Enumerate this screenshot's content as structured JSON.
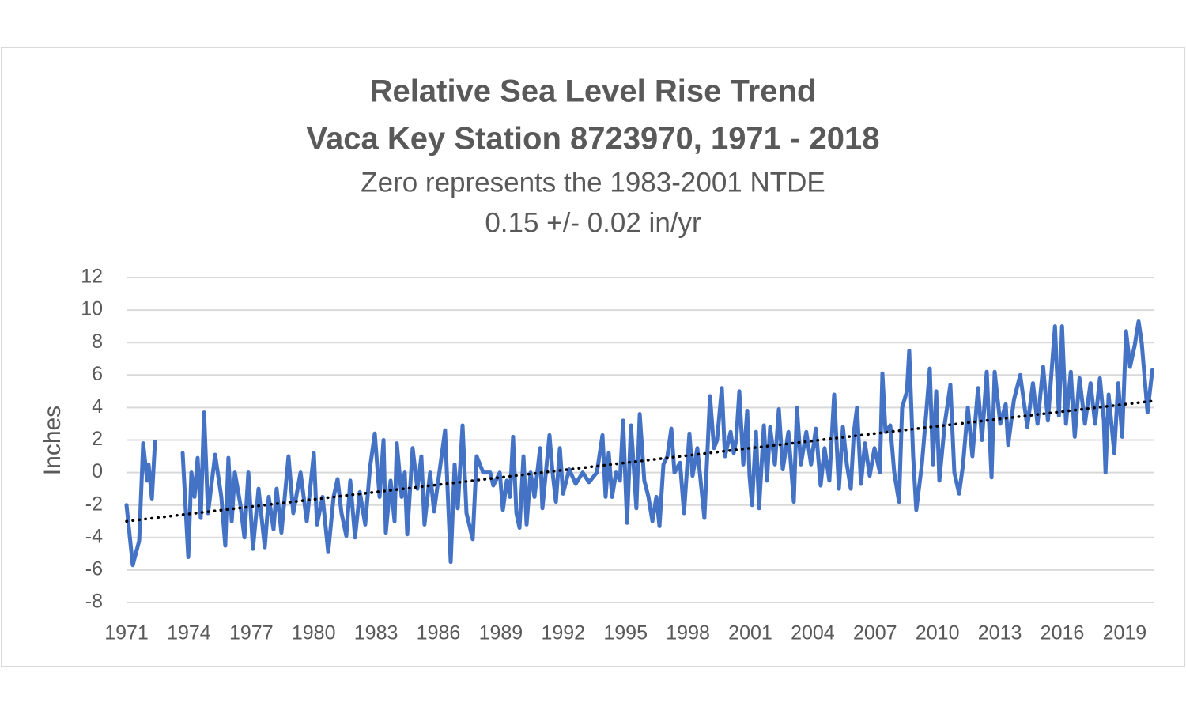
{
  "chart_data": {
    "type": "line",
    "title": [
      "Relative Sea Level Rise Trend",
      "Vaca Key Station 8723970, 1971 - 2018"
    ],
    "subtitle": [
      "Zero represents the 1983-2001 NTDE",
      "0.15 +/- 0.02 in/yr"
    ],
    "y_label": "Inches",
    "xlim": [
      1971,
      2020.43
    ],
    "xticks": [
      1971,
      1974,
      1977,
      1980,
      1983,
      1986,
      1989,
      1992,
      1995,
      1998,
      2001,
      2004,
      2007,
      2010,
      2013,
      2016,
      2019
    ],
    "ylim": [
      -8,
      12
    ],
    "yticks": [
      -8,
      -6,
      -4,
      -2,
      0,
      2,
      4,
      6,
      8,
      10,
      12
    ],
    "grid": true,
    "series": [
      {
        "color": "#4472c4",
        "x": [
          1971.0,
          1971.3,
          1971.61,
          1971.8,
          1971.99,
          1972.06,
          1972.22,
          1972.37,
          1973.0,
          1973.7,
          1973.97,
          1974.12,
          1974.27,
          1974.42,
          1974.57,
          1974.73,
          1974.92,
          1975.26,
          1975.56,
          1975.75,
          1975.9,
          1976.06,
          1976.21,
          1976.48,
          1976.67,
          1976.86,
          1977.08,
          1977.35,
          1977.65,
          1977.84,
          1978.07,
          1978.22,
          1978.45,
          1978.79,
          1979.02,
          1979.37,
          1979.67,
          1980.01,
          1980.16,
          1980.43,
          1980.7,
          1980.96,
          1981.15,
          1981.34,
          1981.57,
          1981.76,
          1981.99,
          1982.22,
          1982.48,
          1982.71,
          1982.94,
          1983.17,
          1983.36,
          1983.47,
          1983.7,
          1983.89,
          1984.0,
          1984.23,
          1984.38,
          1984.5,
          1984.76,
          1984.99,
          1985.18,
          1985.33,
          1985.6,
          1985.79,
          1986.32,
          1986.59,
          1986.78,
          1986.93,
          1987.16,
          1987.35,
          1987.65,
          1987.84,
          1988.15,
          1988.49,
          1988.64,
          1988.95,
          1989.1,
          1989.29,
          1989.44,
          1989.59,
          1989.75,
          1989.9,
          1990.09,
          1990.24,
          1990.43,
          1990.62,
          1990.89,
          1991.0,
          1991.34,
          1991.49,
          1991.65,
          1991.84,
          1991.99,
          1992.29,
          1992.6,
          1992.94,
          1993.24,
          1993.62,
          1993.89,
          1994.04,
          1994.19,
          1994.35,
          1994.54,
          1994.73,
          1994.88,
          1995.07,
          1995.26,
          1995.41,
          1995.52,
          1995.68,
          1995.9,
          1996.1,
          1996.29,
          1996.48,
          1996.63,
          1996.82,
          1997.01,
          1997.2,
          1997.35,
          1997.62,
          1997.81,
          1998.07,
          1998.22,
          1998.45,
          1998.79,
          1999.06,
          1999.25,
          1999.4,
          1999.63,
          1999.78,
          2000.05,
          2000.2,
          2000.32,
          2000.47,
          2000.66,
          2000.85,
          2000.96,
          2001.08,
          2001.27,
          2001.42,
          2001.65,
          2001.8,
          2001.95,
          2002.18,
          2002.37,
          2002.56,
          2002.83,
          2003.09,
          2003.24,
          2003.43,
          2003.69,
          2003.92,
          2004.15,
          2004.38,
          2004.57,
          2004.8,
          2005.03,
          2005.26,
          2005.45,
          2005.64,
          2005.83,
          2005.98,
          2006.13,
          2006.32,
          2006.51,
          2006.74,
          2006.97,
          2007.23,
          2007.35,
          2007.5,
          2007.73,
          2007.92,
          2008.15,
          2008.3,
          2008.53,
          2008.64,
          2008.83,
          2008.98,
          2009.25,
          2009.48,
          2009.63,
          2009.78,
          2009.94,
          2010.09,
          2010.35,
          2010.62,
          2010.81,
          2011.04,
          2011.23,
          2011.46,
          2011.68,
          2011.95,
          2012.14,
          2012.37,
          2012.6,
          2012.75,
          2013.02,
          2013.28,
          2013.4,
          2013.68,
          2013.98,
          2014.32,
          2014.59,
          2014.81,
          2015.08,
          2015.31,
          2015.65,
          2015.84,
          2015.99,
          2016.18,
          2016.41,
          2016.6,
          2016.83,
          2017.09,
          2017.36,
          2017.58,
          2017.81,
          2018.0,
          2018.08,
          2018.23,
          2018.5,
          2018.69,
          2018.88,
          2019.07,
          2019.26,
          2019.48,
          2019.67,
          2019.82,
          2020.1,
          2020.33
        ],
        "values": [
          -2,
          -5.7,
          -4.2,
          1.8,
          -0.5,
          0.5,
          -1.6,
          1.9,
          null,
          1.2,
          -5.2,
          0,
          -1.5,
          0.9,
          -2.8,
          3.7,
          -2.5,
          1.1,
          -1.5,
          -4.5,
          0.9,
          -3,
          0,
          -2,
          -4,
          0,
          -4.7,
          -1,
          -4.6,
          -1.5,
          -3.5,
          -1.0,
          -3.7,
          1.0,
          -2.5,
          0,
          -3,
          1.2,
          -3.2,
          -1.5,
          -4.9,
          -1.5,
          -0.4,
          -2.5,
          -3.9,
          -0.5,
          -4,
          -1.2,
          -3.2,
          0.3,
          2.4,
          -1.5,
          2.0,
          -3.7,
          -0.5,
          -3,
          1.8,
          -1.5,
          0,
          -3.8,
          1.5,
          -1,
          1.0,
          -3.2,
          0,
          -2.4,
          2.6,
          -5.5,
          0.5,
          -2.2,
          2.9,
          -2.5,
          -4.1,
          1,
          0,
          0,
          -0.8,
          0,
          -2.3,
          -0.5,
          -1.5,
          2.2,
          -2.5,
          -3.4,
          1,
          -3.2,
          0,
          -1.5,
          1.5,
          -2.2,
          2.3,
          0,
          -1.8,
          1.5,
          -1.3,
          0.2,
          -0.7,
          0,
          -0.6,
          0,
          2.3,
          -1.5,
          1.2,
          -1.5,
          0,
          -0.5,
          3.2,
          -3.1,
          2.9,
          0,
          -2.2,
          3.6,
          -0.5,
          -1.5,
          -3,
          -1.5,
          -3.3,
          0.5,
          1.0,
          2.7,
          0,
          0.6,
          -2.5,
          2.4,
          -0.2,
          1.5,
          -2.8,
          4.7,
          1.5,
          2.0,
          5.2,
          1,
          2.5,
          1.2,
          2.0,
          5.0,
          0.5,
          3.8,
          -0.2,
          -2.0,
          2.5,
          -2.2,
          2.9,
          -0.5,
          2.8,
          0.5,
          3.9,
          0.2,
          2.5,
          -1.8,
          4,
          0.5,
          2.5,
          0.5,
          2.7,
          -0.8,
          1.5,
          -0.5,
          4.8,
          -1,
          2.8,
          0.5,
          -1,
          2.5,
          4,
          -0.7,
          1.8,
          -0.2,
          1.5,
          0,
          6.1,
          2.5,
          2.9,
          0,
          -1.8,
          4,
          5,
          7.5,
          1,
          -2.3,
          0.5,
          4,
          6.4,
          0.5,
          5,
          -0.5,
          3,
          5.4,
          0,
          -1.3,
          0.5,
          4,
          1,
          5.2,
          2,
          6.2,
          -0.3,
          6.2,
          3,
          4.2,
          1.7,
          4.5,
          6,
          2.8,
          5.5,
          3,
          6.5,
          3.2,
          9,
          3.5,
          9,
          3,
          6.2,
          2.2,
          5.8,
          3,
          5.5,
          3,
          5.8,
          3.2,
          0,
          4.8,
          1.2,
          5.5,
          2.2,
          8.7,
          6.5,
          7.8,
          9.3,
          8,
          3.7,
          6.3
        ]
      },
      {
        "color": "#000000",
        "dash": "dotted",
        "x": [
          1971,
          2020.33
        ],
        "values": [
          -3,
          4.4
        ]
      }
    ]
  }
}
